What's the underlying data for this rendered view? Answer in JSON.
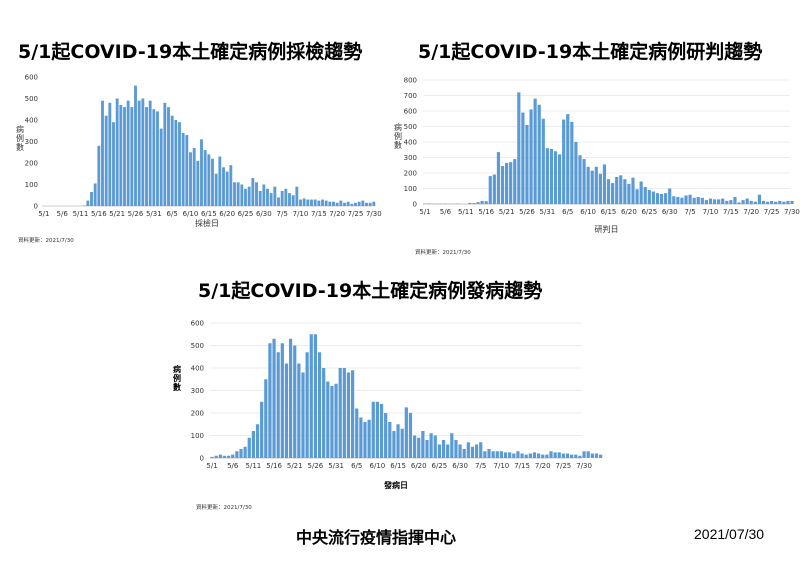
{
  "panel1": {
    "title": "5/1起COVID-19本土確定病例採檢趨勢",
    "footnote": "資料更新：2021/7/30"
  },
  "panel2": {
    "title": "5/1起COVID-19本土確定病例研判趨勢",
    "footnote": "資料更新：2021/7/30"
  },
  "panel3": {
    "title": "5/1起COVID-19本土確定病例發病趨勢",
    "footnote": "資料更新：2021/7/30"
  },
  "footer": {
    "center": "中央流行疫情指揮中心",
    "date": "2021/07/30"
  },
  "colors": {
    "bar": "#5b9bd5"
  },
  "chart_data": [
    {
      "type": "bar",
      "title": "5/1起COVID-19本土確定病例採檢趨勢",
      "xlabel": "採檢日",
      "ylabel": "病例數",
      "ylim": [
        0,
        600
      ],
      "yticks": [
        0,
        100,
        200,
        300,
        400,
        500,
        600
      ],
      "grid": false,
      "x_tick_labels": [
        "5/1",
        "5/6",
        "5/11",
        "5/16",
        "5/21",
        "5/26",
        "5/31",
        "6/5",
        "6/10",
        "6/15",
        "6/20",
        "6/25",
        "6/30",
        "7/5",
        "7/10",
        "7/15",
        "7/20",
        "7/25",
        "7/30"
      ],
      "categories_start": "5/1",
      "categories_end": "7/30",
      "values": [
        0,
        0,
        0,
        0,
        0,
        0,
        0,
        0,
        0,
        0,
        0,
        2,
        25,
        65,
        105,
        280,
        490,
        420,
        480,
        390,
        500,
        470,
        460,
        490,
        460,
        560,
        490,
        500,
        460,
        490,
        450,
        440,
        360,
        480,
        460,
        420,
        400,
        390,
        340,
        330,
        250,
        270,
        210,
        310,
        260,
        240,
        220,
        150,
        230,
        180,
        160,
        190,
        110,
        110,
        100,
        80,
        90,
        130,
        110,
        70,
        100,
        80,
        60,
        90,
        40,
        70,
        80,
        60,
        50,
        90,
        30,
        35,
        30,
        30,
        30,
        25,
        30,
        25,
        20,
        20,
        15,
        25,
        15,
        20,
        10,
        15,
        20,
        25,
        15,
        15,
        20
      ],
      "footnote": "資料更新：2021/7/30"
    },
    {
      "type": "bar",
      "title": "5/1起COVID-19本土確定病例研判趨勢",
      "xlabel": "研判日",
      "ylabel": "病例數",
      "ylim": [
        0,
        800
      ],
      "yticks": [
        0,
        100,
        200,
        300,
        400,
        500,
        600,
        700,
        800
      ],
      "grid": true,
      "x_tick_labels": [
        "5/1",
        "5/6",
        "5/11",
        "5/16",
        "5/21",
        "5/26",
        "5/31",
        "6/5",
        "6/10",
        "6/15",
        "6/20",
        "6/25",
        "6/30",
        "7/5",
        "7/10",
        "7/15",
        "7/20",
        "7/25",
        "7/30"
      ],
      "categories_start": "5/1",
      "categories_end": "7/30",
      "values": [
        2,
        3,
        1,
        2,
        1,
        2,
        1,
        1,
        2,
        0,
        0,
        7,
        6,
        12,
        20,
        18,
        180,
        190,
        335,
        245,
        265,
        270,
        290,
        720,
        590,
        510,
        610,
        680,
        640,
        550,
        360,
        355,
        340,
        320,
        545,
        580,
        530,
        400,
        315,
        290,
        240,
        215,
        240,
        195,
        255,
        160,
        135,
        175,
        185,
        160,
        130,
        170,
        95,
        145,
        110,
        90,
        80,
        70,
        65,
        70,
        100,
        50,
        45,
        40,
        55,
        60,
        40,
        45,
        40,
        25,
        35,
        30,
        30,
        35,
        20,
        25,
        45,
        10,
        25,
        35,
        20,
        15,
        60,
        20,
        15,
        20,
        15,
        20,
        15,
        20,
        20
      ],
      "footnote": "資料更新：2021/7/30"
    },
    {
      "type": "bar",
      "title": "5/1起COVID-19本土確定病例發病趨勢",
      "xlabel": "發病日",
      "ylabel": "病例數",
      "ylim": [
        0,
        600
      ],
      "yticks": [
        0,
        100,
        200,
        300,
        400,
        500,
        600
      ],
      "grid": true,
      "x_tick_labels": [
        "5/1",
        "5/6",
        "5/11",
        "5/16",
        "5/21",
        "5/26",
        "5/31",
        "6/5",
        "6/10",
        "6/15",
        "6/20",
        "6/25",
        "6/30",
        "7/5",
        "7/10",
        "7/15",
        "7/20",
        "7/25",
        "7/30"
      ],
      "categories_start": "5/1",
      "categories_end": "7/30",
      "values": [
        5,
        10,
        15,
        10,
        10,
        15,
        30,
        40,
        50,
        90,
        120,
        150,
        250,
        350,
        510,
        530,
        470,
        510,
        420,
        530,
        500,
        420,
        380,
        470,
        550,
        550,
        470,
        400,
        340,
        320,
        330,
        400,
        400,
        380,
        390,
        220,
        180,
        160,
        170,
        250,
        250,
        240,
        200,
        160,
        120,
        150,
        130,
        225,
        200,
        100,
        90,
        120,
        80,
        110,
        100,
        60,
        80,
        60,
        110,
        80,
        60,
        40,
        70,
        50,
        60,
        70,
        30,
        40,
        30,
        30,
        30,
        25,
        25,
        20,
        30,
        20,
        15,
        20,
        25,
        20,
        15,
        15,
        30,
        25,
        25,
        20,
        20,
        15,
        15,
        10,
        30,
        30,
        20,
        20,
        15
      ],
      "footnote": "資料更新：2021/7/30"
    }
  ]
}
